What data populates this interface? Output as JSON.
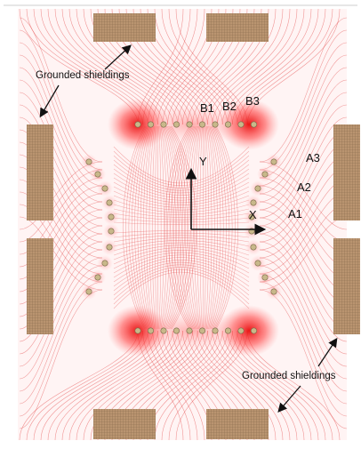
{
  "figure": {
    "electrode_rows": {
      "top": [
        "B1",
        "B2",
        "B3"
      ],
      "right": [
        "A3",
        "A2",
        "A1"
      ]
    },
    "axes": {
      "x_label": "X",
      "y_label": "Y"
    },
    "annotations": {
      "top_left": "Grounded shieldings",
      "bottom_right": "Grounded shieldings"
    },
    "colors": {
      "field_lines": "#e23a3a",
      "hotspot": "#e60000",
      "shielding": "#b58f6a",
      "shielding_grid": "#8a6a4b",
      "electrode": "#c8b88a",
      "arrow": "#111111"
    }
  }
}
